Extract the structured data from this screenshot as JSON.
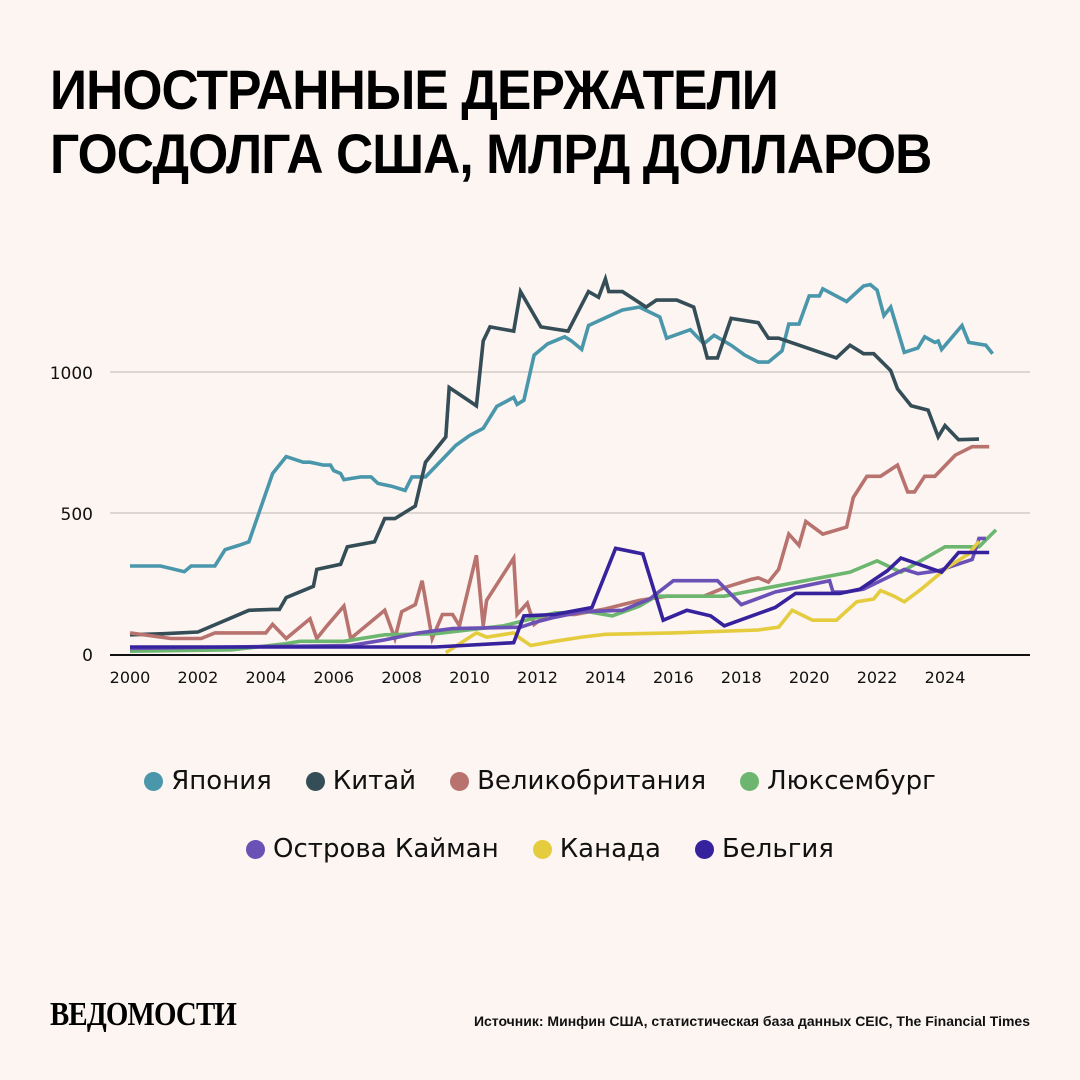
{
  "title": {
    "line1": "ИНОСТРАННЫЕ ДЕРЖАТЕЛИ",
    "line2": "ГОСДОЛГА США, МЛРД ДОЛЛАРОВ"
  },
  "footer": {
    "logo": "ВЕДОМОСТИ",
    "source": "Источник: Минфин США, статистическая база данных CEIC, The Financial Times"
  },
  "chart_data": {
    "type": "line",
    "title": "ИНОСТРАННЫЕ ДЕРЖАТЕЛИ ГОСДОЛГА США, МЛРД ДОЛЛАРОВ",
    "xlabel": "",
    "ylabel": "",
    "xlim": [
      2000,
      2026
    ],
    "ylim": [
      0,
      1350
    ],
    "grid": true,
    "legend_position": "bottom",
    "x_ticks": [
      "2000",
      "2002",
      "2004",
      "2006",
      "2008",
      "2010",
      "2012",
      "2014",
      "2016",
      "2018",
      "2020",
      "2022",
      "2024"
    ],
    "x_tick_values": [
      2000,
      2002,
      2004,
      2006,
      2008,
      2010,
      2012,
      2014,
      2016,
      2018,
      2020,
      2022,
      2024
    ],
    "y_ticks": [
      "0",
      "500",
      "1000"
    ],
    "y_tick_values": [
      0,
      500,
      1000
    ],
    "series": [
      {
        "name": "Япония",
        "color": "#4a97ab",
        "points": [
          [
            2000,
            312
          ],
          [
            2000.9,
            312
          ],
          [
            2001.6,
            292
          ],
          [
            2001.8,
            312
          ],
          [
            2002.2,
            312
          ],
          [
            2002.4,
            312
          ],
          [
            2002.5,
            312
          ],
          [
            2002.8,
            370
          ],
          [
            2003.2,
            385
          ],
          [
            2003.5,
            398
          ],
          [
            2004.2,
            640
          ],
          [
            2004.6,
            700
          ],
          [
            2005.1,
            680
          ],
          [
            2005.3,
            680
          ],
          [
            2005.7,
            670
          ],
          [
            2005.9,
            670
          ],
          [
            2006,
            650
          ],
          [
            2006.2,
            640
          ],
          [
            2006.3,
            618
          ],
          [
            2006.8,
            628
          ],
          [
            2007.1,
            628
          ],
          [
            2007.3,
            605
          ],
          [
            2007.7,
            595
          ],
          [
            2008.1,
            580
          ],
          [
            2008.3,
            628
          ],
          [
            2008.7,
            628
          ],
          [
            2009.2,
            690
          ],
          [
            2009.6,
            740
          ],
          [
            2010,
            775
          ],
          [
            2010.4,
            800
          ],
          [
            2010.8,
            878
          ],
          [
            2011.3,
            910
          ],
          [
            2011.4,
            885
          ],
          [
            2011.6,
            900
          ],
          [
            2011.9,
            1060
          ],
          [
            2012.3,
            1100
          ],
          [
            2012.8,
            1125
          ],
          [
            2013,
            1110
          ],
          [
            2013.3,
            1080
          ],
          [
            2013.5,
            1165
          ],
          [
            2014.5,
            1220
          ],
          [
            2015,
            1230
          ],
          [
            2015.6,
            1195
          ],
          [
            2015.8,
            1120
          ],
          [
            2016.5,
            1150
          ],
          [
            2016.9,
            1100
          ],
          [
            2017.2,
            1130
          ],
          [
            2017.7,
            1095
          ],
          [
            2018.1,
            1060
          ],
          [
            2018.5,
            1035
          ],
          [
            2018.8,
            1035
          ],
          [
            2019.2,
            1075
          ],
          [
            2019.4,
            1170
          ],
          [
            2019.7,
            1170
          ],
          [
            2020,
            1270
          ],
          [
            2020.3,
            1270
          ],
          [
            2020.4,
            1295
          ],
          [
            2021.1,
            1250
          ],
          [
            2021.6,
            1305
          ],
          [
            2021.8,
            1310
          ],
          [
            2022,
            1290
          ],
          [
            2022.2,
            1200
          ],
          [
            2022.4,
            1230
          ],
          [
            2022.8,
            1070
          ],
          [
            2023.2,
            1085
          ],
          [
            2023.4,
            1125
          ],
          [
            2023.7,
            1105
          ],
          [
            2023.8,
            1110
          ],
          [
            2023.9,
            1080
          ],
          [
            2024.5,
            1165
          ],
          [
            2024.7,
            1105
          ],
          [
            2025.2,
            1095
          ],
          [
            2025.4,
            1065
          ]
        ]
      },
      {
        "name": "Китай",
        "color": "#344d56",
        "points": [
          [
            2000,
            68
          ],
          [
            2001,
            72
          ],
          [
            2002,
            78
          ],
          [
            2003.5,
            155
          ],
          [
            2004.2,
            158
          ],
          [
            2004.4,
            158
          ],
          [
            2004.6,
            200
          ],
          [
            2005.4,
            240
          ],
          [
            2005.5,
            300
          ],
          [
            2006.2,
            318
          ],
          [
            2006.4,
            380
          ],
          [
            2007.2,
            398
          ],
          [
            2007.5,
            480
          ],
          [
            2007.8,
            480
          ],
          [
            2008.4,
            525
          ],
          [
            2008.7,
            680
          ],
          [
            2009.3,
            770
          ],
          [
            2009.4,
            945
          ],
          [
            2010.2,
            880
          ],
          [
            2010.4,
            1110
          ],
          [
            2010.6,
            1160
          ],
          [
            2011.3,
            1145
          ],
          [
            2011.5,
            1285
          ],
          [
            2012.1,
            1160
          ],
          [
            2012.9,
            1145
          ],
          [
            2013.5,
            1285
          ],
          [
            2013.8,
            1265
          ],
          [
            2014,
            1330
          ],
          [
            2014.1,
            1285
          ],
          [
            2014.5,
            1285
          ],
          [
            2015.2,
            1230
          ],
          [
            2015.5,
            1255
          ],
          [
            2016.1,
            1255
          ],
          [
            2016.6,
            1230
          ],
          [
            2017,
            1050
          ],
          [
            2017.3,
            1050
          ],
          [
            2017.7,
            1190
          ],
          [
            2018.5,
            1175
          ],
          [
            2018.8,
            1120
          ],
          [
            2019.1,
            1120
          ],
          [
            2020.8,
            1050
          ],
          [
            2021.2,
            1095
          ],
          [
            2021.6,
            1065
          ],
          [
            2021.9,
            1065
          ],
          [
            2022.4,
            1005
          ],
          [
            2022.6,
            940
          ],
          [
            2023,
            880
          ],
          [
            2023.5,
            865
          ],
          [
            2023.8,
            770
          ],
          [
            2024,
            810
          ],
          [
            2024.4,
            760
          ],
          [
            2025,
            762
          ]
        ]
      },
      {
        "name": "Великобритания",
        "color": "#b8736f",
        "points": [
          [
            2000,
            75
          ],
          [
            2001.2,
            55
          ],
          [
            2002.1,
            55
          ],
          [
            2002.5,
            75
          ],
          [
            2003.5,
            75
          ],
          [
            2004,
            75
          ],
          [
            2004.2,
            105
          ],
          [
            2004.6,
            55
          ],
          [
            2005.3,
            125
          ],
          [
            2005.5,
            55
          ],
          [
            2005.8,
            100
          ],
          [
            2006.3,
            170
          ],
          [
            2006.5,
            55
          ],
          [
            2007.5,
            155
          ],
          [
            2007.8,
            55
          ],
          [
            2008,
            150
          ],
          [
            2008.4,
            175
          ],
          [
            2008.6,
            260
          ],
          [
            2008.9,
            55
          ],
          [
            2009.2,
            140
          ],
          [
            2009.5,
            140
          ],
          [
            2009.7,
            100
          ],
          [
            2010.2,
            350
          ],
          [
            2010.4,
            100
          ],
          [
            2010.5,
            190
          ],
          [
            2011.3,
            340
          ],
          [
            2011.4,
            140
          ],
          [
            2011.7,
            180
          ],
          [
            2011.9,
            105
          ],
          [
            2012.3,
            140
          ],
          [
            2013.1,
            140
          ],
          [
            2014,
            160
          ],
          [
            2015,
            190
          ],
          [
            2015.8,
            205
          ],
          [
            2016.9,
            205
          ],
          [
            2017.5,
            235
          ],
          [
            2018.3,
            265
          ],
          [
            2018.5,
            270
          ],
          [
            2018.8,
            255
          ],
          [
            2019.1,
            300
          ],
          [
            2019.4,
            425
          ],
          [
            2019.7,
            385
          ],
          [
            2019.9,
            470
          ],
          [
            2020.4,
            425
          ],
          [
            2021.1,
            450
          ],
          [
            2021.3,
            555
          ],
          [
            2021.7,
            630
          ],
          [
            2022.1,
            630
          ],
          [
            2022.6,
            670
          ],
          [
            2022.9,
            575
          ],
          [
            2023.1,
            575
          ],
          [
            2023.4,
            630
          ],
          [
            2023.7,
            630
          ],
          [
            2024.3,
            705
          ],
          [
            2024.8,
            735
          ],
          [
            2025.3,
            735
          ]
        ]
      },
      {
        "name": "Люксембург",
        "color": "#6db66f",
        "points": [
          [
            2000,
            10
          ],
          [
            2003,
            15
          ],
          [
            2004.5,
            35
          ],
          [
            2005,
            45
          ],
          [
            2006.3,
            45
          ],
          [
            2007.5,
            68
          ],
          [
            2009,
            72
          ],
          [
            2011,
            100
          ],
          [
            2012.5,
            145
          ],
          [
            2013.5,
            150
          ],
          [
            2014.2,
            135
          ],
          [
            2015,
            170
          ],
          [
            2015.5,
            205
          ],
          [
            2017.5,
            205
          ],
          [
            2019,
            240
          ],
          [
            2021.2,
            290
          ],
          [
            2022,
            330
          ],
          [
            2022.7,
            290
          ],
          [
            2024,
            380
          ],
          [
            2025,
            380
          ],
          [
            2025.5,
            440
          ]
        ]
      },
      {
        "name": "Острова Кайман",
        "color": "#6b50b5",
        "points": [
          [
            2000,
            20
          ],
          [
            2003,
            25
          ],
          [
            2006.5,
            30
          ],
          [
            2007.5,
            50
          ],
          [
            2008.5,
            75
          ],
          [
            2009.5,
            90
          ],
          [
            2011.5,
            95
          ],
          [
            2012,
            115
          ],
          [
            2012.5,
            130
          ],
          [
            2013.3,
            150
          ],
          [
            2014.5,
            155
          ],
          [
            2015.3,
            195
          ],
          [
            2016,
            260
          ],
          [
            2017.3,
            260
          ],
          [
            2018,
            175
          ],
          [
            2019,
            220
          ],
          [
            2020.6,
            260
          ],
          [
            2020.7,
            220
          ],
          [
            2021.1,
            220
          ],
          [
            2021.6,
            230
          ],
          [
            2022.8,
            300
          ],
          [
            2023.2,
            285
          ],
          [
            2023.8,
            295
          ],
          [
            2024.8,
            335
          ],
          [
            2025,
            410
          ],
          [
            2025.2,
            410
          ]
        ]
      },
      {
        "name": "Канада",
        "color": "#e5cc3e",
        "points": [
          [
            2009.3,
            5
          ],
          [
            2010.2,
            75
          ],
          [
            2010.5,
            60
          ],
          [
            2011.3,
            75
          ],
          [
            2011.5,
            55
          ],
          [
            2011.8,
            30
          ],
          [
            2012.5,
            45
          ],
          [
            2013.3,
            60
          ],
          [
            2014,
            70
          ],
          [
            2016,
            75
          ],
          [
            2018.5,
            85
          ],
          [
            2019.1,
            95
          ],
          [
            2019.5,
            155
          ],
          [
            2020.1,
            120
          ],
          [
            2020.8,
            120
          ],
          [
            2021.4,
            185
          ],
          [
            2021.9,
            195
          ],
          [
            2022.1,
            225
          ],
          [
            2022.5,
            205
          ],
          [
            2022.8,
            185
          ],
          [
            2023.3,
            230
          ],
          [
            2023.8,
            280
          ],
          [
            2024.1,
            310
          ],
          [
            2024.7,
            355
          ],
          [
            2025,
            400
          ]
        ]
      },
      {
        "name": "Бельгия",
        "color": "#37229e",
        "points": [
          [
            2000,
            25
          ],
          [
            2009,
            25
          ],
          [
            2011.3,
            40
          ],
          [
            2011.6,
            135
          ],
          [
            2012.5,
            140
          ],
          [
            2013.6,
            165
          ],
          [
            2014.3,
            375
          ],
          [
            2015.1,
            355
          ],
          [
            2015.7,
            120
          ],
          [
            2016.4,
            155
          ],
          [
            2017.1,
            135
          ],
          [
            2017.5,
            100
          ],
          [
            2019,
            165
          ],
          [
            2019.6,
            215
          ],
          [
            2020.9,
            215
          ],
          [
            2021.5,
            230
          ],
          [
            2022.3,
            295
          ],
          [
            2022.7,
            340
          ],
          [
            2023.9,
            290
          ],
          [
            2024.4,
            360
          ],
          [
            2025.3,
            360
          ]
        ]
      }
    ]
  }
}
